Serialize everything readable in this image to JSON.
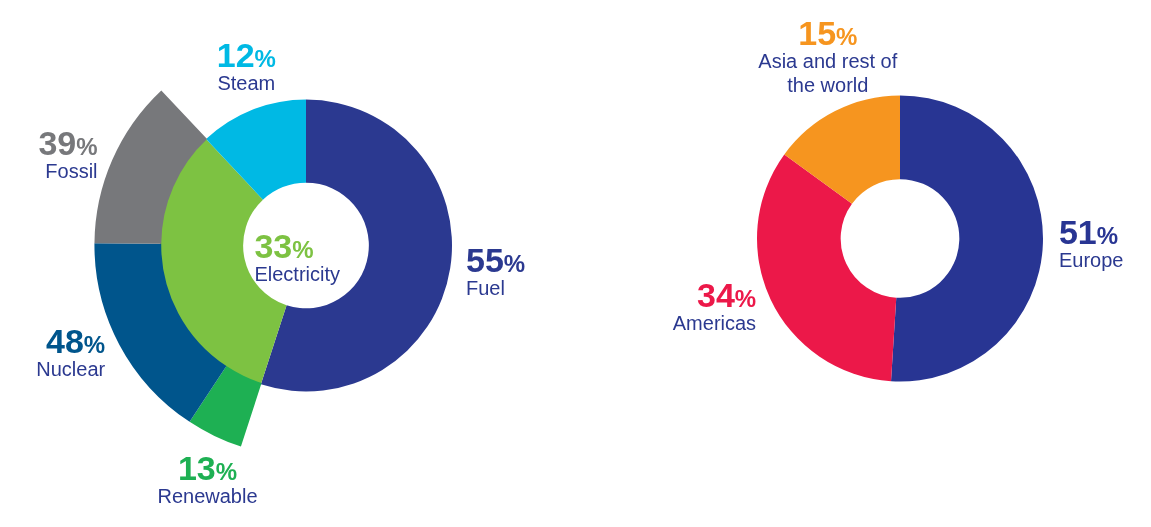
{
  "chart_data": [
    {
      "type": "donut",
      "categories": [
        "Fuel",
        "Electricity",
        "Steam"
      ],
      "values": [
        55,
        33,
        12
      ],
      "colors": [
        "#2b3990",
        "#7dc242",
        "#00b9e4"
      ],
      "value_labels": [
        "55%",
        "33%",
        "12%"
      ]
    },
    {
      "type": "donut",
      "categories": [
        "Renewable",
        "Nuclear",
        "Fossil"
      ],
      "values": [
        13,
        48,
        39
      ],
      "colors": [
        "#1eb053",
        "#00558c",
        "#77787b"
      ],
      "value_labels": [
        "13%",
        "48%",
        "39%"
      ]
    },
    {
      "type": "donut",
      "categories": [
        "Europe",
        "Americas",
        "Asia and rest of the world"
      ],
      "values": [
        51,
        34,
        15
      ],
      "colors": [
        "#283593",
        "#ec1849",
        "#f6951f"
      ],
      "value_labels": [
        "51%",
        "34%",
        "15%"
      ]
    }
  ]
}
